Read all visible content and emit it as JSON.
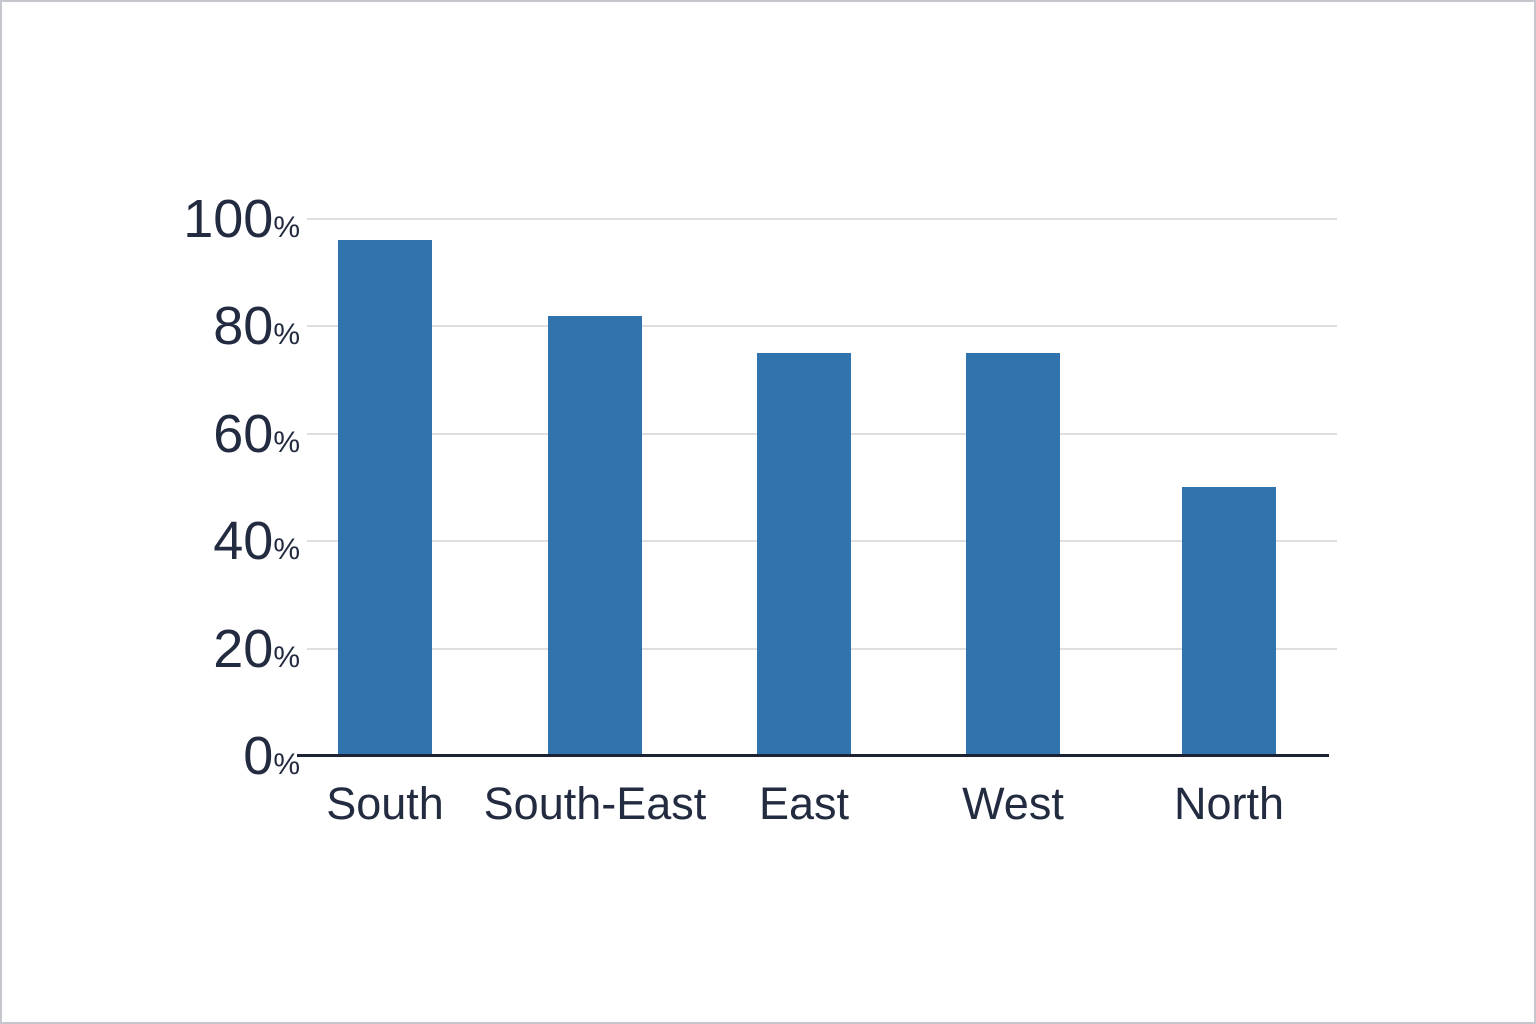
{
  "chart_data": {
    "type": "bar",
    "categories": [
      "South",
      "South-East",
      "East",
      "West",
      "North"
    ],
    "values": [
      96,
      82,
      75,
      75,
      50
    ],
    "unit_suffix": "%",
    "y_axis": {
      "ticks": [
        0,
        20,
        40,
        60,
        80,
        100
      ],
      "range": [
        0,
        100
      ]
    },
    "grid": true,
    "legend": false,
    "colors": {
      "bar": "#3173ac",
      "axis": "#1b2334",
      "gridline": "#dfdfe3",
      "label": "#232b40",
      "background": "#ffffff",
      "page_border": "#c4c8cc"
    }
  }
}
